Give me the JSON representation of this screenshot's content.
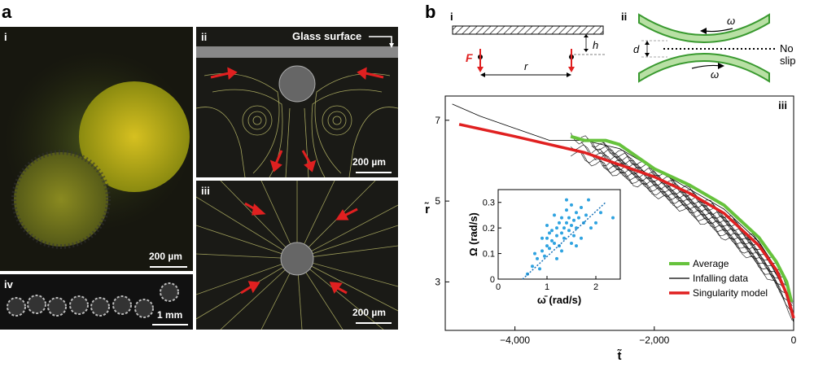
{
  "panel_a": {
    "letter": "a",
    "i": {
      "label": "i",
      "scale": "200 µm"
    },
    "ii": {
      "label": "ii",
      "glass": "Glass surface",
      "scale": "200 µm"
    },
    "iii": {
      "label": "iii",
      "scale": "200 µm"
    },
    "iv": {
      "label": "iv",
      "scale": "1 mm"
    }
  },
  "panel_b": {
    "letter": "b",
    "i": {
      "label": "i",
      "force": "F",
      "height": "h",
      "radius": "r"
    },
    "ii": {
      "label": "ii",
      "omega_top": "ω",
      "omega_bottom": "ω",
      "gap": "d",
      "no_slip": "No slip"
    }
  },
  "colors": {
    "average": "#66c23c",
    "infalling": "#000000",
    "model": "#e02020",
    "inset": "#2fa3e0",
    "arrow": "#e02020"
  },
  "chart_data": [
    {
      "type": "line",
      "label": "iii",
      "xlabel": "t̃",
      "ylabel": "r̃",
      "xlim": [
        -5000,
        0
      ],
      "ylim": [
        1.8,
        7.6
      ],
      "x_ticks": [
        -4000,
        -2000,
        0
      ],
      "x_tick_labels": [
        "−4,000",
        "−2,000",
        "0"
      ],
      "y_ticks": [
        3,
        5,
        7
      ],
      "y_tick_labels": [
        "3",
        "5",
        "7"
      ],
      "legend": [
        "Average",
        "Infalling data",
        "Singularity model"
      ],
      "legend_position": "bottom-right",
      "series": [
        {
          "name": "Singularity model",
          "x": [
            -4800,
            -4000,
            -3000,
            -2000,
            -1500,
            -1000,
            -500,
            -250,
            -100,
            -30,
            0
          ],
          "y": [
            6.9,
            6.6,
            6.2,
            5.6,
            5.2,
            4.7,
            3.9,
            3.3,
            2.7,
            2.3,
            2.1
          ]
        },
        {
          "name": "Average",
          "x": [
            -3200,
            -3000,
            -2700,
            -2500,
            -2000,
            -1500,
            -1000,
            -500,
            -250,
            -100,
            -30
          ],
          "y": [
            6.6,
            6.5,
            6.5,
            6.4,
            5.8,
            5.4,
            4.9,
            4.1,
            3.5,
            3.0,
            2.5
          ]
        },
        {
          "name": "Infalling data",
          "x": [
            -4900,
            -4500,
            -4000,
            -3500,
            -3000,
            -2500,
            -2000,
            -1500,
            -1000,
            -500,
            -200,
            0
          ],
          "y": [
            7.4,
            7.1,
            6.8,
            6.5,
            6.5,
            6.3,
            5.8,
            5.3,
            4.8,
            4.0,
            3.2,
            2.0
          ]
        }
      ]
    },
    {
      "type": "scatter",
      "label": "inset",
      "xlabel": "ω̄ (rad/s)",
      "ylabel": "Ω (rad/s)",
      "xlim": [
        0,
        2.5
      ],
      "ylim": [
        0,
        0.35
      ],
      "x_ticks": [
        0,
        1,
        2
      ],
      "x_tick_labels": [
        "0",
        "1",
        "2"
      ],
      "y_ticks": [
        0,
        0.1,
        0.2,
        0.3
      ],
      "y_tick_labels": [
        "0",
        "0.1",
        "0.2",
        "0.3"
      ],
      "fit": {
        "x": [
          0.5,
          2.2
        ],
        "y": [
          0.0,
          0.3
        ]
      },
      "points": [
        [
          0.6,
          0.02
        ],
        [
          0.7,
          0.05
        ],
        [
          0.8,
          0.08
        ],
        [
          0.85,
          0.04
        ],
        [
          0.9,
          0.11
        ],
        [
          0.95,
          0.09
        ],
        [
          1.0,
          0.13
        ],
        [
          1.0,
          0.16
        ],
        [
          1.05,
          0.12
        ],
        [
          1.1,
          0.15
        ],
        [
          1.1,
          0.19
        ],
        [
          1.15,
          0.14
        ],
        [
          1.2,
          0.2
        ],
        [
          1.2,
          0.17
        ],
        [
          1.25,
          0.22
        ],
        [
          1.25,
          0.13
        ],
        [
          1.3,
          0.18
        ],
        [
          1.3,
          0.24
        ],
        [
          1.35,
          0.2
        ],
        [
          1.35,
          0.16
        ],
        [
          1.4,
          0.22
        ],
        [
          1.4,
          0.27
        ],
        [
          1.45,
          0.19
        ],
        [
          1.45,
          0.24
        ],
        [
          1.5,
          0.21
        ],
        [
          1.5,
          0.29
        ],
        [
          1.55,
          0.23
        ],
        [
          1.55,
          0.17
        ],
        [
          1.6,
          0.26
        ],
        [
          1.6,
          0.2
        ],
        [
          1.65,
          0.24
        ],
        [
          1.7,
          0.28
        ],
        [
          1.75,
          0.22
        ],
        [
          1.8,
          0.25
        ],
        [
          1.85,
          0.31
        ],
        [
          1.9,
          0.2
        ],
        [
          2.0,
          0.22
        ],
        [
          2.1,
          0.26
        ],
        [
          2.35,
          0.24
        ],
        [
          0.75,
          0.1
        ],
        [
          1.15,
          0.25
        ],
        [
          1.0,
          0.21
        ],
        [
          1.3,
          0.11
        ],
        [
          1.6,
          0.13
        ],
        [
          1.2,
          0.08
        ],
        [
          0.9,
          0.16
        ],
        [
          1.4,
          0.31
        ],
        [
          1.7,
          0.16
        ],
        [
          1.5,
          0.14
        ],
        [
          1.05,
          0.18
        ]
      ]
    }
  ]
}
